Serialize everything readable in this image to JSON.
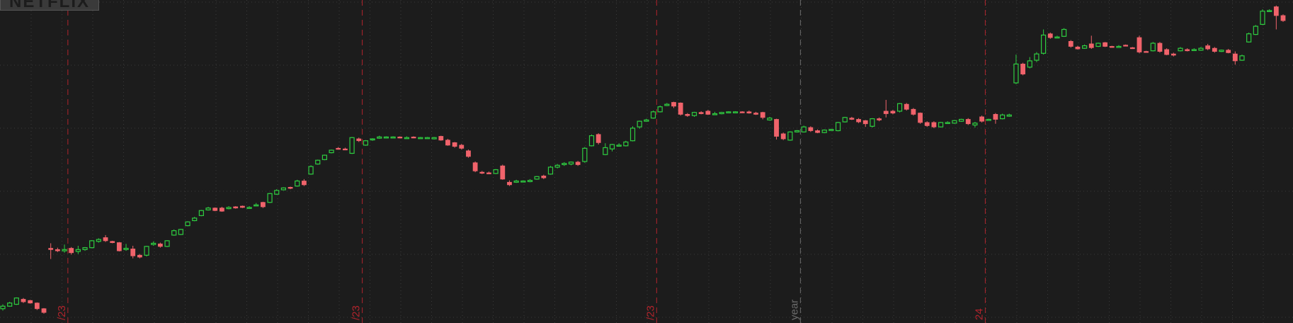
{
  "app": {
    "symbol_watermark": "NETFLIX"
  },
  "colors": {
    "background": "#1c1c1c",
    "grid": "#3a3a3a",
    "up": "#2ecc40",
    "down": "#f0636b",
    "period_marker": "#b0242c",
    "year_marker": "#6b6b6b"
  },
  "markers": [
    {
      "label": "/23",
      "kind": "period",
      "after_candle": 9
    },
    {
      "label": "/23",
      "kind": "period",
      "after_candle": 52
    },
    {
      "label": "/23",
      "kind": "period",
      "after_candle": 95
    },
    {
      "label": "year",
      "kind": "year",
      "after_candle": 116
    },
    {
      "label": "24",
      "kind": "period",
      "after_candle": 143
    }
  ],
  "chart_data": {
    "type": "candlestick",
    "ylim": [
      0,
      5
    ],
    "grid": true,
    "candles": [
      [
        0.16,
        0.2,
        0.23,
        0.13
      ],
      [
        0.2,
        0.25,
        0.27,
        0.19
      ],
      [
        0.23,
        0.33,
        0.34,
        0.22
      ],
      [
        0.31,
        0.27,
        0.33,
        0.25
      ],
      [
        0.29,
        0.25,
        0.3,
        0.24
      ],
      [
        0.25,
        0.16,
        0.26,
        0.14
      ],
      [
        0.16,
        0.1,
        0.17,
        0.08
      ],
      [
        1.12,
        1.1,
        1.2,
        0.95
      ],
      [
        1.1,
        1.08,
        1.13,
        1.06
      ],
      [
        1.08,
        1.1,
        1.18,
        1.05
      ],
      [
        1.12,
        1.05,
        1.14,
        1.02
      ],
      [
        1.07,
        1.1,
        1.16,
        1.03
      ],
      [
        1.1,
        1.13,
        1.14,
        1.08
      ],
      [
        1.13,
        1.24,
        1.25,
        1.12
      ],
      [
        1.23,
        1.26,
        1.28,
        1.21
      ],
      [
        1.29,
        1.24,
        1.33,
        1.22
      ],
      [
        1.23,
        1.21,
        1.24,
        1.2
      ],
      [
        1.21,
        1.08,
        1.22,
        1.07
      ],
      [
        1.1,
        1.12,
        1.19,
        1.08
      ],
      [
        1.11,
        1.0,
        1.16,
        0.96
      ],
      [
        1.01,
        0.98,
        1.03,
        0.96
      ],
      [
        1.01,
        1.15,
        1.16,
        0.99
      ],
      [
        1.18,
        1.2,
        1.23,
        1.16
      ],
      [
        1.19,
        1.15,
        1.21,
        1.13
      ],
      [
        1.15,
        1.24,
        1.25,
        1.14
      ],
      [
        1.33,
        1.4,
        1.42,
        1.32
      ],
      [
        1.34,
        1.42,
        1.43,
        1.33
      ],
      [
        1.48,
        1.54,
        1.55,
        1.47
      ],
      [
        1.56,
        1.6,
        1.62,
        1.55
      ],
      [
        1.64,
        1.72,
        1.73,
        1.63
      ],
      [
        1.73,
        1.76,
        1.78,
        1.72
      ],
      [
        1.76,
        1.72,
        1.77,
        1.71
      ],
      [
        1.76,
        1.71,
        1.78,
        1.7
      ],
      [
        1.75,
        1.77,
        1.79,
        1.74
      ],
      [
        1.78,
        1.76,
        1.79,
        1.75
      ],
      [
        1.79,
        1.77,
        1.8,
        1.76
      ],
      [
        1.76,
        1.77,
        1.79,
        1.75
      ],
      [
        1.8,
        1.81,
        1.84,
        1.79
      ],
      [
        1.85,
        1.78,
        1.86,
        1.76
      ],
      [
        1.85,
        1.99,
        2.0,
        1.84
      ],
      [
        1.98,
        2.04,
        2.06,
        1.97
      ],
      [
        2.05,
        2.08,
        2.09,
        2.04
      ],
      [
        2.09,
        2.08,
        2.1,
        2.06
      ],
      [
        2.11,
        2.19,
        2.21,
        2.1
      ],
      [
        2.19,
        2.13,
        2.22,
        2.11
      ],
      [
        2.3,
        2.42,
        2.44,
        2.29
      ],
      [
        2.46,
        2.52,
        2.53,
        2.45
      ],
      [
        2.53,
        2.6,
        2.61,
        2.52
      ],
      [
        2.64,
        2.68,
        2.69,
        2.63
      ],
      [
        2.71,
        2.7,
        2.73,
        2.69
      ],
      [
        2.7,
        2.69,
        2.72,
        2.68
      ],
      [
        2.63,
        2.88,
        2.89,
        2.62
      ],
      [
        2.86,
        2.83,
        2.88,
        2.81
      ],
      [
        2.76,
        2.83,
        2.84,
        2.75
      ],
      [
        2.85,
        2.86,
        2.87,
        2.83
      ],
      [
        2.87,
        2.89,
        2.91,
        2.86
      ],
      [
        2.88,
        2.89,
        2.9,
        2.87
      ],
      [
        2.88,
        2.89,
        2.9,
        2.87
      ],
      [
        2.89,
        2.88,
        2.9,
        2.87
      ],
      [
        2.88,
        2.88,
        2.9,
        2.87
      ],
      [
        2.89,
        2.88,
        2.9,
        2.87
      ],
      [
        2.88,
        2.88,
        2.89,
        2.86
      ],
      [
        2.87,
        2.88,
        2.89,
        2.86
      ],
      [
        2.86,
        2.88,
        2.89,
        2.85
      ],
      [
        2.9,
        2.84,
        2.91,
        2.83
      ],
      [
        2.84,
        2.76,
        2.86,
        2.75
      ],
      [
        2.8,
        2.74,
        2.81,
        2.72
      ],
      [
        2.76,
        2.71,
        2.78,
        2.69
      ],
      [
        2.67,
        2.58,
        2.69,
        2.56
      ],
      [
        2.48,
        2.35,
        2.5,
        2.33
      ],
      [
        2.33,
        2.32,
        2.35,
        2.3
      ],
      [
        2.32,
        2.31,
        2.34,
        2.3
      ],
      [
        2.31,
        2.37,
        2.38,
        2.3
      ],
      [
        2.43,
        2.22,
        2.45,
        2.21
      ],
      [
        2.17,
        2.13,
        2.2,
        2.11
      ],
      [
        2.17,
        2.19,
        2.21,
        2.16
      ],
      [
        2.18,
        2.19,
        2.2,
        2.17
      ],
      [
        2.18,
        2.2,
        2.22,
        2.17
      ],
      [
        2.22,
        2.26,
        2.27,
        2.21
      ],
      [
        2.27,
        2.24,
        2.29,
        2.22
      ],
      [
        2.3,
        2.41,
        2.43,
        2.29
      ],
      [
        2.41,
        2.44,
        2.46,
        2.39
      ],
      [
        2.45,
        2.47,
        2.49,
        2.43
      ],
      [
        2.46,
        2.49,
        2.5,
        2.44
      ],
      [
        2.49,
        2.45,
        2.51,
        2.43
      ],
      [
        2.5,
        2.71,
        2.73,
        2.48
      ],
      [
        2.75,
        2.91,
        2.93,
        2.74
      ],
      [
        2.93,
        2.8,
        2.95,
        2.77
      ],
      [
        2.61,
        2.72,
        2.79,
        2.6
      ],
      [
        2.7,
        2.77,
        2.78,
        2.66
      ],
      [
        2.75,
        2.76,
        2.79,
        2.74
      ],
      [
        2.75,
        2.81,
        2.83,
        2.74
      ],
      [
        2.83,
        3.03,
        3.06,
        2.82
      ],
      [
        3.05,
        3.14,
        3.15,
        3.02
      ],
      [
        3.14,
        3.16,
        3.18,
        3.13
      ],
      [
        3.19,
        3.29,
        3.31,
        3.18
      ],
      [
        3.29,
        3.37,
        3.39,
        3.28
      ],
      [
        3.39,
        3.41,
        3.43,
        3.38
      ],
      [
        3.44,
        3.38,
        3.45,
        3.35
      ],
      [
        3.43,
        3.25,
        3.44,
        3.23
      ],
      [
        3.25,
        3.23,
        3.27,
        3.21
      ],
      [
        3.23,
        3.28,
        3.29,
        3.21
      ],
      [
        3.28,
        3.26,
        3.3,
        3.25
      ],
      [
        3.3,
        3.25,
        3.32,
        3.24
      ],
      [
        3.26,
        3.26,
        3.29,
        3.25
      ],
      [
        3.26,
        3.28,
        3.29,
        3.25
      ],
      [
        3.28,
        3.29,
        3.3,
        3.27
      ],
      [
        3.29,
        3.29,
        3.3,
        3.28
      ],
      [
        3.29,
        3.28,
        3.3,
        3.28
      ],
      [
        3.29,
        3.27,
        3.31,
        3.26
      ],
      [
        3.27,
        3.25,
        3.29,
        3.24
      ],
      [
        3.28,
        3.2,
        3.29,
        3.17
      ],
      [
        3.16,
        3.19,
        3.21,
        3.15
      ],
      [
        3.17,
        2.9,
        3.18,
        2.85
      ],
      [
        2.94,
        2.86,
        2.96,
        2.84
      ],
      [
        2.84,
        2.97,
        2.98,
        2.83
      ],
      [
        2.97,
        2.99,
        3.0,
        2.96
      ],
      [
        2.97,
        3.05,
        3.07,
        2.96
      ],
      [
        3.04,
        2.99,
        3.06,
        2.97
      ],
      [
        2.99,
        2.96,
        3.01,
        2.95
      ],
      [
        2.96,
        3.0,
        3.01,
        2.95
      ],
      [
        3.0,
        3.01,
        3.02,
        2.99
      ],
      [
        2.99,
        3.12,
        3.13,
        2.98
      ],
      [
        3.13,
        3.2,
        3.21,
        3.12
      ],
      [
        3.19,
        3.17,
        3.21,
        3.16
      ],
      [
        3.17,
        3.13,
        3.19,
        3.11
      ],
      [
        3.15,
        3.1,
        3.16,
        3.05
      ],
      [
        3.06,
        3.18,
        3.19,
        3.04
      ],
      [
        3.18,
        3.16,
        3.2,
        3.14
      ],
      [
        3.3,
        3.26,
        3.48,
        3.2
      ],
      [
        3.3,
        3.27,
        3.32,
        3.25
      ],
      [
        3.3,
        3.42,
        3.43,
        3.28
      ],
      [
        3.41,
        3.33,
        3.43,
        3.31
      ],
      [
        3.33,
        3.25,
        3.35,
        3.23
      ],
      [
        3.27,
        3.12,
        3.28,
        3.1
      ],
      [
        3.12,
        3.07,
        3.14,
        3.05
      ],
      [
        3.12,
        3.05,
        3.14,
        3.03
      ],
      [
        3.05,
        3.12,
        3.13,
        3.04
      ],
      [
        3.12,
        3.12,
        3.14,
        3.1
      ],
      [
        3.11,
        3.15,
        3.16,
        3.1
      ],
      [
        3.14,
        3.17,
        3.18,
        3.13
      ],
      [
        3.17,
        3.1,
        3.19,
        3.08
      ],
      [
        3.08,
        3.11,
        3.13,
        3.04
      ],
      [
        3.21,
        3.14,
        3.23,
        3.12
      ],
      [
        3.17,
        3.17,
        3.18,
        3.15
      ],
      [
        3.25,
        3.17,
        3.27,
        3.1
      ],
      [
        3.18,
        3.24,
        3.26,
        3.17
      ],
      [
        3.22,
        3.24,
        3.26,
        3.21
      ],
      [
        3.75,
        4.05,
        4.2,
        3.73
      ],
      [
        4.05,
        3.89,
        4.07,
        3.87
      ],
      [
        4.0,
        4.1,
        4.16,
        3.98
      ],
      [
        4.11,
        4.21,
        4.24,
        4.08
      ],
      [
        4.22,
        4.51,
        4.6,
        4.2
      ],
      [
        4.53,
        4.47,
        4.55,
        4.45
      ],
      [
        4.47,
        4.48,
        4.5,
        4.46
      ],
      [
        4.49,
        4.6,
        4.62,
        4.48
      ],
      [
        4.41,
        4.33,
        4.43,
        4.31
      ],
      [
        4.32,
        4.29,
        4.34,
        4.28
      ],
      [
        4.3,
        4.34,
        4.36,
        4.29
      ],
      [
        4.37,
        4.31,
        4.5,
        4.29
      ],
      [
        4.33,
        4.38,
        4.39,
        4.32
      ],
      [
        4.39,
        4.33,
        4.4,
        4.32
      ],
      [
        4.33,
        4.32,
        4.34,
        4.31
      ],
      [
        4.33,
        4.33,
        4.35,
        4.32
      ],
      [
        4.35,
        4.34,
        4.36,
        4.33
      ],
      [
        4.31,
        4.3,
        4.32,
        4.29
      ],
      [
        4.47,
        4.24,
        4.5,
        4.22
      ],
      [
        4.25,
        4.24,
        4.26,
        4.23
      ],
      [
        4.26,
        4.38,
        4.4,
        4.25
      ],
      [
        4.38,
        4.25,
        4.4,
        4.23
      ],
      [
        4.28,
        4.2,
        4.3,
        4.19
      ],
      [
        4.21,
        4.19,
        4.23,
        4.17
      ],
      [
        4.26,
        4.3,
        4.32,
        4.25
      ],
      [
        4.28,
        4.26,
        4.3,
        4.25
      ],
      [
        4.28,
        4.28,
        4.3,
        4.27
      ],
      [
        4.27,
        4.3,
        4.32,
        4.26
      ],
      [
        4.34,
        4.29,
        4.37,
        4.27
      ],
      [
        4.3,
        4.25,
        4.32,
        4.23
      ],
      [
        4.25,
        4.27,
        4.28,
        4.24
      ],
      [
        4.27,
        4.23,
        4.29,
        4.22
      ],
      [
        4.21,
        4.1,
        4.25,
        4.04
      ],
      [
        4.11,
        4.18,
        4.2,
        4.1
      ],
      [
        4.4,
        4.53,
        4.55,
        4.39
      ],
      [
        4.52,
        4.65,
        4.67,
        4.51
      ],
      [
        4.68,
        4.89,
        4.92,
        4.67
      ],
      [
        4.89,
        4.9,
        4.92,
        4.88
      ],
      [
        4.96,
        4.82,
        4.98,
        4.6
      ],
      [
        4.82,
        4.74,
        4.84,
        4.72
      ]
    ]
  }
}
